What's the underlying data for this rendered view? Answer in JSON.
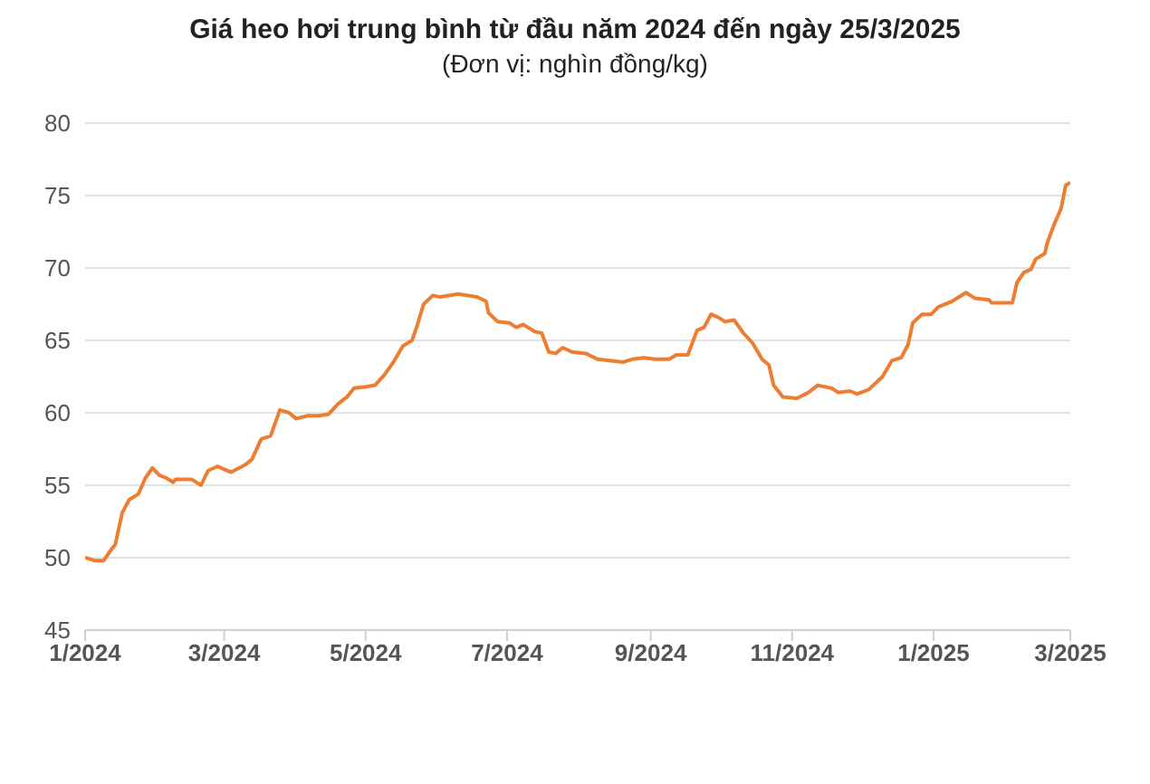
{
  "chart_data": {
    "type": "line",
    "title": "Giá heo hơi trung bình từ đầu năm 2024 đến ngày 25/3/2025",
    "subtitle": "(Đơn vị: nghìn đồng/kg)",
    "x": [
      "2024-01-01",
      "2024-01-05",
      "2024-01-09",
      "2024-01-12",
      "2024-01-14",
      "2024-01-17",
      "2024-01-20",
      "2024-01-24",
      "2024-01-27",
      "2024-01-30",
      "2024-02-02",
      "2024-02-05",
      "2024-02-08",
      "2024-02-09",
      "2024-02-16",
      "2024-02-20",
      "2024-02-23",
      "2024-02-27",
      "2024-03-04",
      "2024-03-10",
      "2024-03-13",
      "2024-03-17",
      "2024-03-21",
      "2024-03-25",
      "2024-03-29",
      "2024-04-01",
      "2024-04-06",
      "2024-04-11",
      "2024-04-15",
      "2024-04-19",
      "2024-04-23",
      "2024-04-26",
      "2024-05-01",
      "2024-05-05",
      "2024-05-09",
      "2024-05-13",
      "2024-05-17",
      "2024-05-21",
      "2024-05-23",
      "2024-05-26",
      "2024-05-30",
      "2024-06-02",
      "2024-06-10",
      "2024-06-18",
      "2024-06-22",
      "2024-06-23",
      "2024-06-27",
      "2024-07-02",
      "2024-07-05",
      "2024-07-08",
      "2024-07-13",
      "2024-07-16",
      "2024-07-19",
      "2024-07-22",
      "2024-07-25",
      "2024-07-29",
      "2024-08-04",
      "2024-08-09",
      "2024-08-15",
      "2024-08-20",
      "2024-08-24",
      "2024-08-29",
      "2024-09-03",
      "2024-09-09",
      "2024-09-12",
      "2024-09-17",
      "2024-09-21",
      "2024-09-24",
      "2024-09-27",
      "2024-09-30",
      "2024-10-03",
      "2024-10-07",
      "2024-10-11",
      "2024-10-15",
      "2024-10-19",
      "2024-10-22",
      "2024-10-24",
      "2024-10-28",
      "2024-11-03",
      "2024-11-08",
      "2024-11-12",
      "2024-11-18",
      "2024-11-21",
      "2024-11-26",
      "2024-11-29",
      "2024-12-04",
      "2024-12-10",
      "2024-12-14",
      "2024-12-18",
      "2024-12-21",
      "2024-12-23",
      "2024-12-27",
      "2024-12-31",
      "2025-01-03",
      "2025-01-09",
      "2025-01-15",
      "2025-01-19",
      "2025-01-25",
      "2025-01-26",
      "2025-02-04",
      "2025-02-06",
      "2025-02-09",
      "2025-02-12",
      "2025-02-14",
      "2025-02-18",
      "2025-02-19",
      "2025-02-22",
      "2025-02-25",
      "2025-02-27",
      "2025-03-01"
    ],
    "series": [
      {
        "color": "#ed7d31",
        "values": [
          50.0,
          49.8,
          49.8,
          50.5,
          50.9,
          53.1,
          54.0,
          54.4,
          55.5,
          56.2,
          55.7,
          55.5,
          55.2,
          55.4,
          55.4,
          55.0,
          56.0,
          56.3,
          55.9,
          56.4,
          56.8,
          58.2,
          58.4,
          60.2,
          60.0,
          59.6,
          59.8,
          59.8,
          59.9,
          60.6,
          61.1,
          61.7,
          61.8,
          61.9,
          62.6,
          63.5,
          64.6,
          65.0,
          65.9,
          67.5,
          68.1,
          68.0,
          68.2,
          68.0,
          67.7,
          66.9,
          66.3,
          66.2,
          65.9,
          66.1,
          65.6,
          65.5,
          64.2,
          64.1,
          64.5,
          64.2,
          64.1,
          63.7,
          63.6,
          63.5,
          63.7,
          63.8,
          63.7,
          63.7,
          64.0,
          64.0,
          65.7,
          65.9,
          66.8,
          66.6,
          66.3,
          66.4,
          65.5,
          64.8,
          63.7,
          63.3,
          61.9,
          61.1,
          61.0,
          61.4,
          61.9,
          61.7,
          61.4,
          61.5,
          61.3,
          61.6,
          62.5,
          63.6,
          63.8,
          64.7,
          66.2,
          66.8,
          66.8,
          67.3,
          67.7,
          68.3,
          67.9,
          67.8,
          67.6,
          67.6,
          69.0,
          69.7,
          69.9,
          70.6,
          71.0,
          71.7,
          73.0,
          74.1,
          75.7,
          75.9
        ]
      }
    ],
    "xlim": [
      "2024-01-01",
      "2025-03-01"
    ],
    "xticks": [
      {
        "value": "2024-01-01",
        "label": "1/2024"
      },
      {
        "value": "2024-03-01",
        "label": "3/2024"
      },
      {
        "value": "2024-05-01",
        "label": "5/2024"
      },
      {
        "value": "2024-07-01",
        "label": "7/2024"
      },
      {
        "value": "2024-09-01",
        "label": "9/2024"
      },
      {
        "value": "2024-11-01",
        "label": "11/2024"
      },
      {
        "value": "2025-01-01",
        "label": "1/2025"
      },
      {
        "value": "2025-03-01",
        "label": "3/2025"
      }
    ],
    "ylim": [
      45,
      80
    ],
    "yticks": [
      45,
      50,
      55,
      60,
      65,
      70,
      75,
      80
    ],
    "grid": "y",
    "marker": "none",
    "line_style": "solid"
  }
}
